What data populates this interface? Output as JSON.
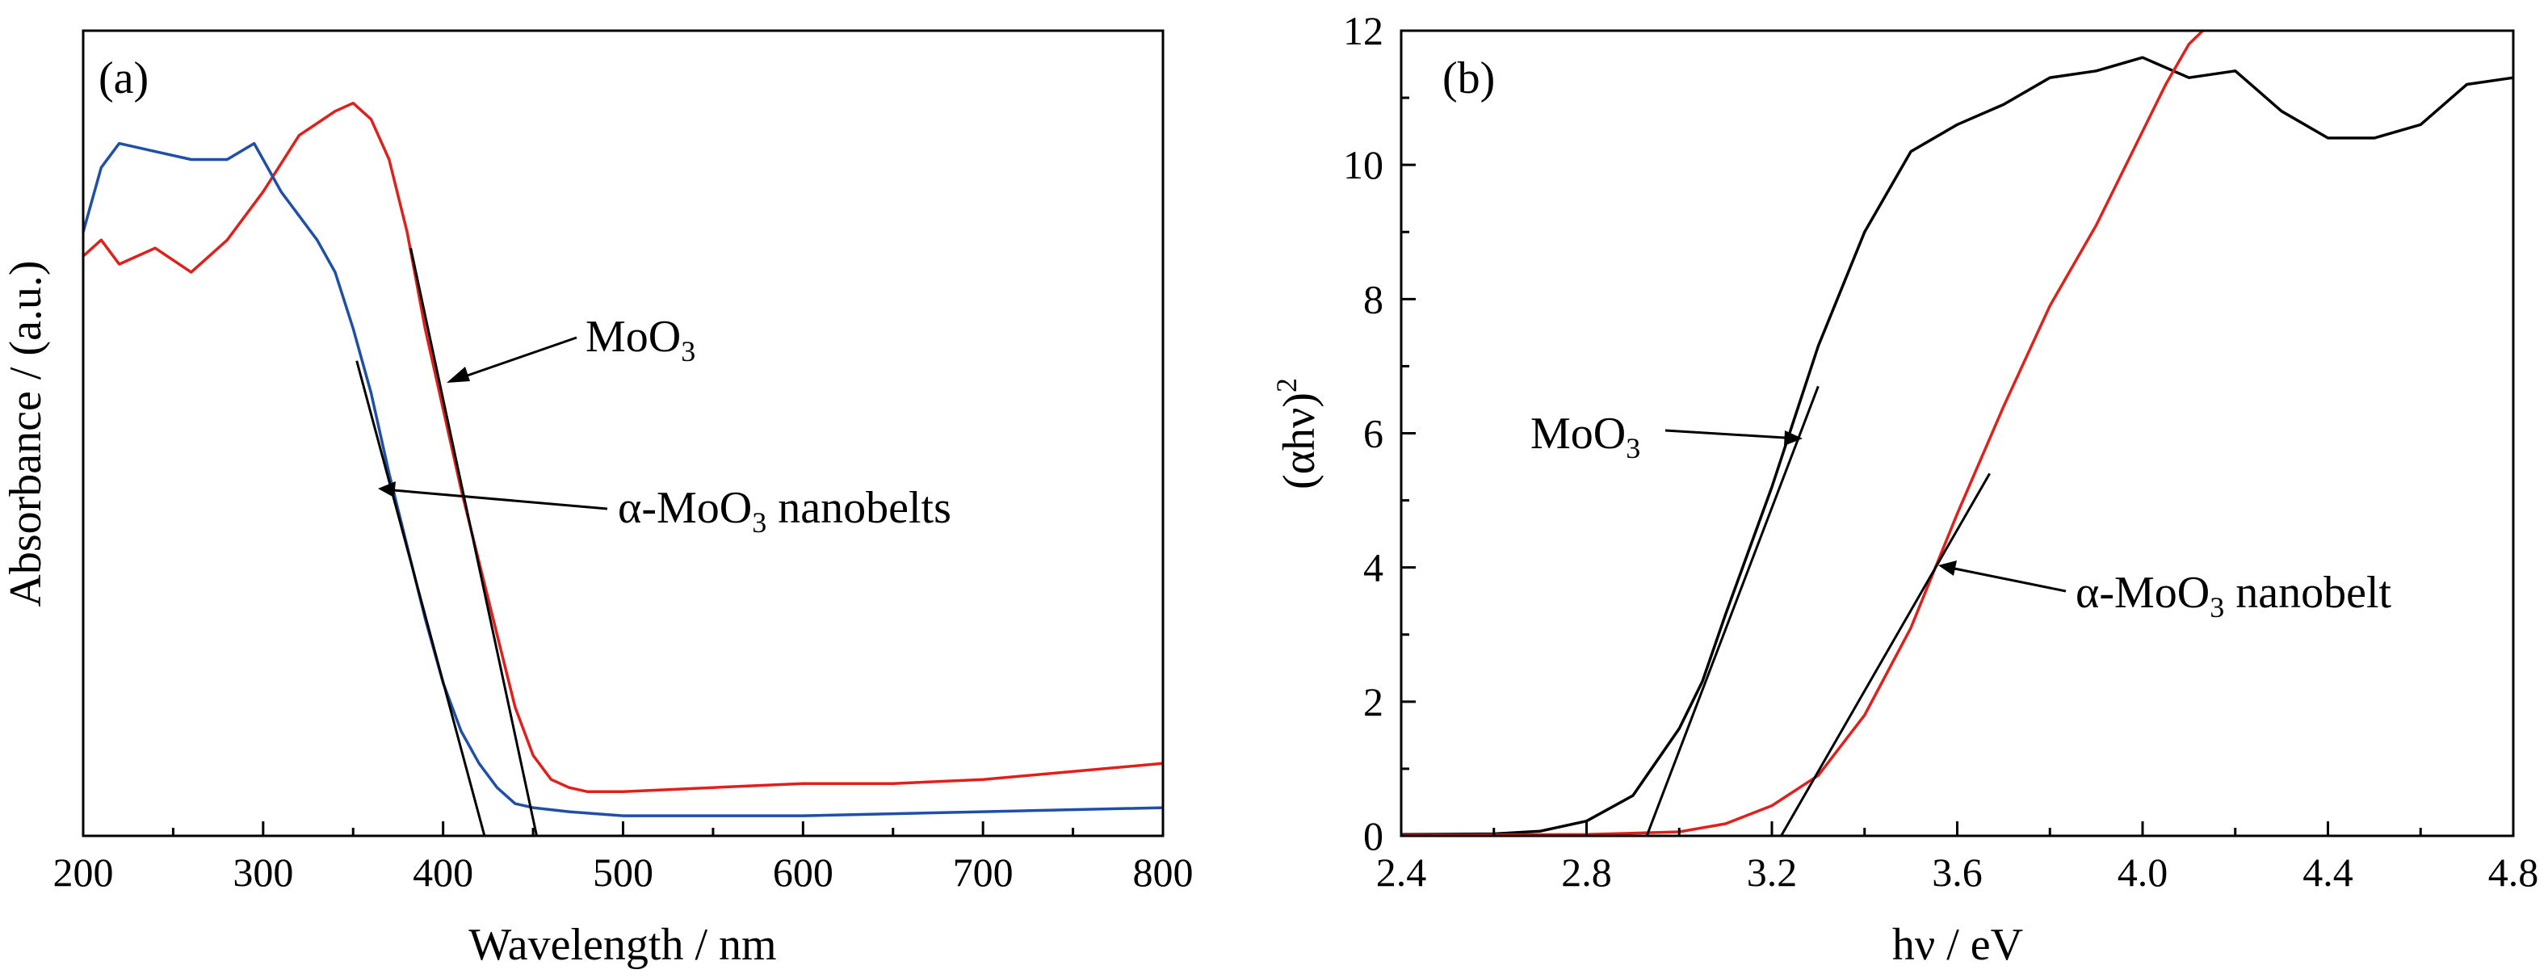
{
  "chart_data": [
    {
      "type": "line",
      "panel_label": "(a)",
      "xlabel": "Wavelength / nm",
      "ylabel": "Absorbance / (a.u.)",
      "xlim": [
        200,
        800
      ],
      "ylim": [
        0,
        1
      ],
      "xticks": [
        "200",
        "300",
        "400",
        "500",
        "600",
        "700",
        "800"
      ],
      "series": [
        {
          "name": "MoO3",
          "color": "#e0201b",
          "points": [
            [
              200,
              0.72
            ],
            [
              210,
              0.74
            ],
            [
              220,
              0.71
            ],
            [
              240,
              0.73
            ],
            [
              260,
              0.7
            ],
            [
              280,
              0.74
            ],
            [
              300,
              0.8
            ],
            [
              320,
              0.87
            ],
            [
              340,
              0.9
            ],
            [
              350,
              0.91
            ],
            [
              360,
              0.89
            ],
            [
              370,
              0.84
            ],
            [
              380,
              0.75
            ],
            [
              390,
              0.63
            ],
            [
              400,
              0.53
            ],
            [
              410,
              0.43
            ],
            [
              420,
              0.34
            ],
            [
              430,
              0.25
            ],
            [
              440,
              0.16
            ],
            [
              450,
              0.1
            ],
            [
              460,
              0.07
            ],
            [
              470,
              0.06
            ],
            [
              480,
              0.055
            ],
            [
              500,
              0.055
            ],
            [
              550,
              0.06
            ],
            [
              600,
              0.065
            ],
            [
              650,
              0.065
            ],
            [
              700,
              0.07
            ],
            [
              750,
              0.08
            ],
            [
              800,
              0.09
            ]
          ]
        },
        {
          "name": "α-MoO3 nanobelts",
          "color": "#1f4fa6",
          "points": [
            [
              200,
              0.75
            ],
            [
              210,
              0.83
            ],
            [
              220,
              0.86
            ],
            [
              240,
              0.85
            ],
            [
              260,
              0.84
            ],
            [
              280,
              0.84
            ],
            [
              295,
              0.86
            ],
            [
              310,
              0.8
            ],
            [
              320,
              0.77
            ],
            [
              330,
              0.74
            ],
            [
              340,
              0.7
            ],
            [
              350,
              0.63
            ],
            [
              360,
              0.55
            ],
            [
              370,
              0.45
            ],
            [
              380,
              0.36
            ],
            [
              390,
              0.27
            ],
            [
              400,
              0.19
            ],
            [
              410,
              0.13
            ],
            [
              420,
              0.09
            ],
            [
              430,
              0.06
            ],
            [
              440,
              0.04
            ],
            [
              450,
              0.035
            ],
            [
              470,
              0.03
            ],
            [
              500,
              0.025
            ],
            [
              600,
              0.025
            ],
            [
              700,
              0.03
            ],
            [
              800,
              0.035
            ]
          ]
        }
      ],
      "fit_lines": [
        {
          "x": [
            382,
            452
          ],
          "y": [
            0.73,
            0.0
          ]
        },
        {
          "x": [
            352,
            423
          ],
          "y": [
            0.59,
            0.0
          ]
        }
      ],
      "annotations": {
        "a1_main": "MoO",
        "a1_sub": "3",
        "a2_pre": "α-MoO",
        "a2_sub": "3",
        "a2_post": " nanobelts"
      }
    },
    {
      "type": "line",
      "panel_label": "(b)",
      "xlabel": "hν / eV",
      "ylabel_main": "(αhν)",
      "ylabel_sup": "2",
      "xlim": [
        2.4,
        4.8
      ],
      "ylim": [
        0,
        12
      ],
      "xticks": [
        "2.4",
        "2.8",
        "3.2",
        "3.6",
        "4.0",
        "4.4",
        "4.8"
      ],
      "yticks": [
        "0",
        "2",
        "4",
        "6",
        "8",
        "10",
        "12"
      ],
      "series": [
        {
          "name": "MoO3",
          "color": "#000000",
          "points": [
            [
              2.4,
              0.02
            ],
            [
              2.6,
              0.03
            ],
            [
              2.7,
              0.07
            ],
            [
              2.8,
              0.22
            ],
            [
              2.9,
              0.6
            ],
            [
              3.0,
              1.6
            ],
            [
              3.05,
              2.3
            ],
            [
              3.1,
              3.3
            ],
            [
              3.2,
              5.2
            ],
            [
              3.3,
              7.3
            ],
            [
              3.4,
              9.0
            ],
            [
              3.5,
              10.2
            ],
            [
              3.6,
              10.6
            ],
            [
              3.7,
              10.9
            ],
            [
              3.8,
              11.3
            ],
            [
              3.9,
              11.4
            ],
            [
              4.0,
              11.6
            ],
            [
              4.1,
              11.3
            ],
            [
              4.2,
              11.4
            ],
            [
              4.3,
              10.8
            ],
            [
              4.4,
              10.4
            ],
            [
              4.5,
              10.4
            ],
            [
              4.6,
              10.6
            ],
            [
              4.7,
              11.2
            ],
            [
              4.8,
              11.3
            ]
          ]
        },
        {
          "name": "α-MoO3 nanobelt",
          "color": "#e0201b",
          "points": [
            [
              2.4,
              0.01
            ],
            [
              2.8,
              0.02
            ],
            [
              3.0,
              0.06
            ],
            [
              3.1,
              0.18
            ],
            [
              3.2,
              0.45
            ],
            [
              3.3,
              0.9
            ],
            [
              3.4,
              1.8
            ],
            [
              3.5,
              3.1
            ],
            [
              3.6,
              4.8
            ],
            [
              3.7,
              6.4
            ],
            [
              3.8,
              7.9
            ],
            [
              3.9,
              9.1
            ],
            [
              4.0,
              10.5
            ],
            [
              4.05,
              11.2
            ],
            [
              4.1,
              11.8
            ],
            [
              4.13,
              12.0
            ]
          ]
        }
      ],
      "fit_lines": [
        {
          "x": [
            2.93,
            3.3
          ],
          "y": [
            0.0,
            6.7
          ]
        },
        {
          "x": [
            3.22,
            3.67
          ],
          "y": [
            0.0,
            5.4
          ]
        }
      ],
      "annotations": {
        "b1_main": "MoO",
        "b1_sub": "3",
        "b2_pre": "α-MoO",
        "b2_sub": "3",
        "b2_post": " nanobelt"
      }
    }
  ]
}
